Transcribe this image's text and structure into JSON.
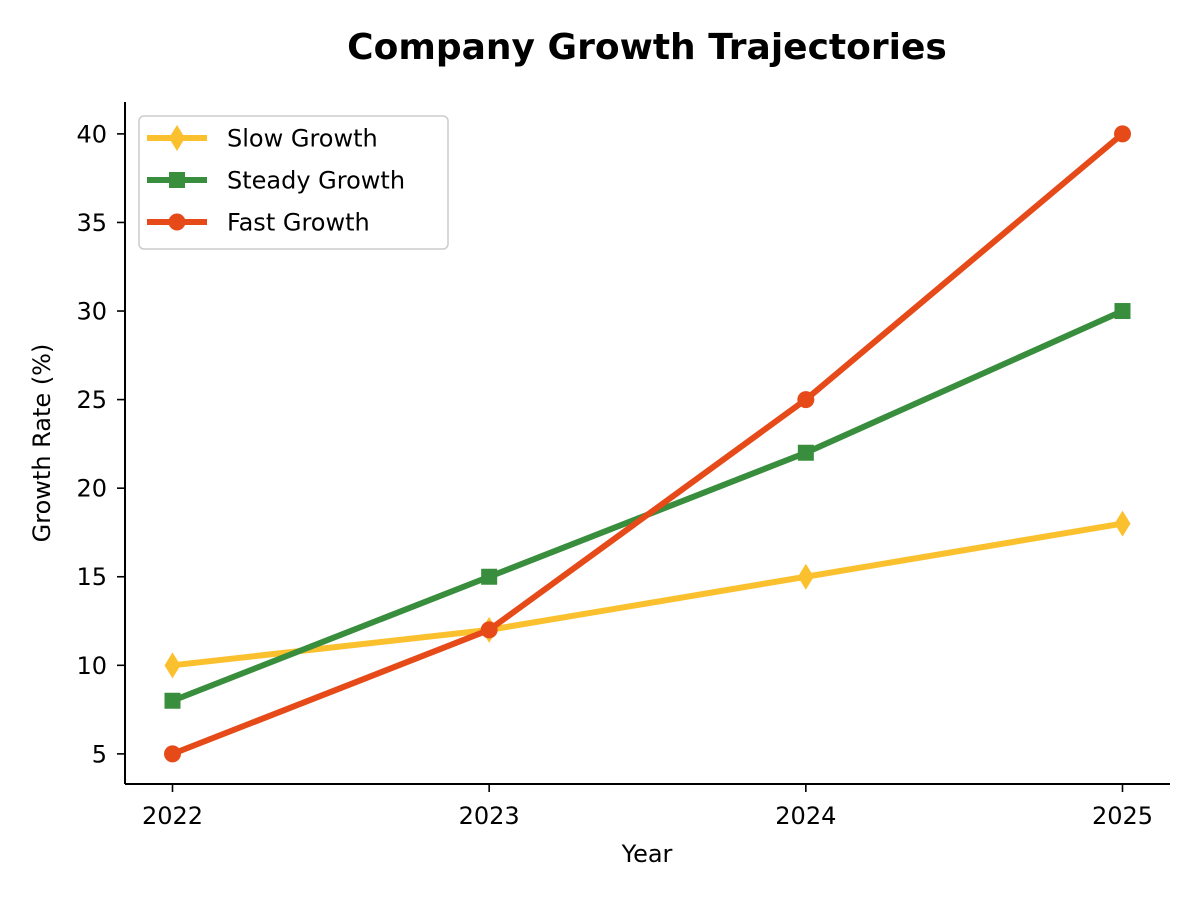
{
  "chart_data": {
    "type": "line",
    "title": "Company Growth Trajectories",
    "xlabel": "Year",
    "ylabel": "Growth Rate (%)",
    "x": [
      "2022",
      "2023",
      "2024",
      "2025"
    ],
    "xlim": [
      -0.15,
      3.15
    ],
    "ylim": [
      3.3,
      41.8
    ],
    "yticks": [
      5,
      10,
      15,
      20,
      25,
      30,
      35,
      40
    ],
    "grid": false,
    "legend_position": "top-left",
    "series": [
      {
        "name": "Slow Growth",
        "values": [
          10,
          12,
          15,
          18
        ],
        "color": "#FBC02D",
        "marker": "diamond"
      },
      {
        "name": "Steady Growth",
        "values": [
          8,
          15,
          22,
          30
        ],
        "color": "#388E3C",
        "marker": "square"
      },
      {
        "name": "Fast Growth",
        "values": [
          5,
          12,
          25,
          40
        ],
        "color": "#E64A19",
        "marker": "circle"
      }
    ]
  }
}
